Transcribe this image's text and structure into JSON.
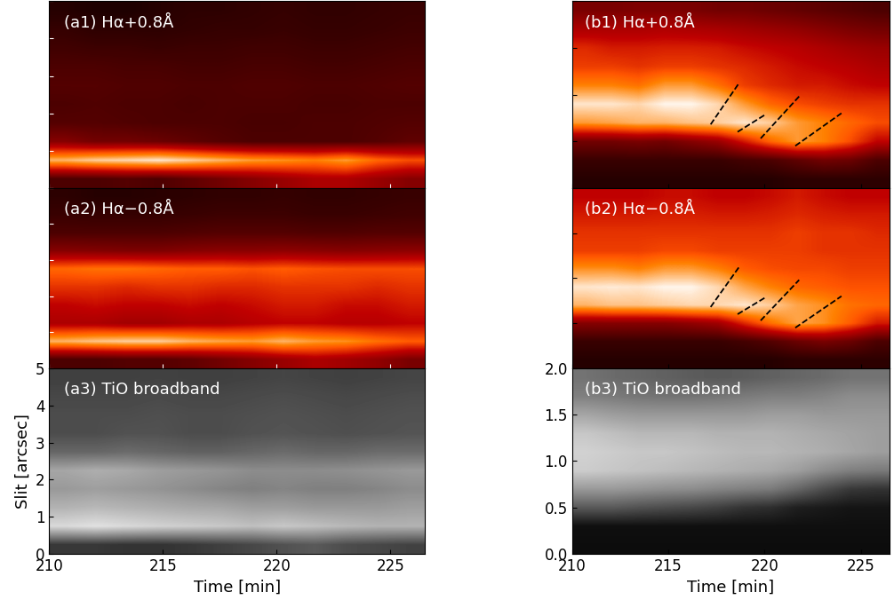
{
  "chart_data": [
    {
      "type": "heatmap",
      "title": "(a1) Hα+0.8Å",
      "color": "gist_heat",
      "xlim": [
        210,
        226.5
      ],
      "xticks": [
        210,
        215,
        220,
        225
      ],
      "ylim": [
        0,
        5
      ],
      "yticks": [
        0,
        1,
        2,
        3,
        4,
        5
      ],
      "tick_labels": false,
      "value_range": [
        0,
        1
      ],
      "cells": [
        [
          0.2,
          0.2,
          0.22,
          0.2,
          0.25,
          0.3,
          0.35,
          0.4,
          0.45,
          0.45,
          0.4,
          0.35
        ],
        [
          0.85,
          0.9,
          0.92,
          0.95,
          0.9,
          0.85,
          0.8,
          0.78,
          0.75,
          0.8,
          0.7,
          0.65
        ],
        [
          0.35,
          0.3,
          0.3,
          0.28,
          0.25,
          0.22,
          0.2,
          0.2,
          0.2,
          0.2,
          0.22,
          0.25
        ],
        [
          0.22,
          0.22,
          0.21,
          0.2,
          0.2,
          0.2,
          0.19,
          0.19,
          0.2,
          0.2,
          0.21,
          0.22
        ],
        [
          0.2,
          0.21,
          0.2,
          0.2,
          0.19,
          0.2,
          0.2,
          0.2,
          0.19,
          0.19,
          0.2,
          0.2
        ],
        [
          0.22,
          0.22,
          0.21,
          0.21,
          0.2,
          0.2,
          0.21,
          0.21,
          0.2,
          0.2,
          0.21,
          0.22
        ],
        [
          0.2,
          0.2,
          0.19,
          0.19,
          0.18,
          0.18,
          0.19,
          0.19,
          0.18,
          0.18,
          0.19,
          0.2
        ],
        [
          0.17,
          0.16,
          0.16,
          0.15,
          0.16,
          0.16,
          0.17,
          0.17,
          0.16,
          0.16,
          0.17,
          0.18
        ],
        [
          0.14,
          0.12,
          0.12,
          0.12,
          0.13,
          0.14,
          0.14,
          0.15,
          0.14,
          0.14,
          0.15,
          0.16
        ],
        [
          0.1,
          0.08,
          0.08,
          0.1,
          0.12,
          0.12,
          0.13,
          0.14,
          0.13,
          0.13,
          0.14,
          0.15
        ]
      ]
    },
    {
      "type": "heatmap",
      "title": "(a2) Hα−0.8Å",
      "color": "gist_heat",
      "xlim": [
        210,
        226.5
      ],
      "xticks": [
        210,
        215,
        220,
        225
      ],
      "ylim": [
        0,
        5
      ],
      "yticks": [
        0,
        1,
        2,
        3,
        4,
        5
      ],
      "tick_labels": false,
      "value_range": [
        0,
        1
      ],
      "cells": [
        [
          0.2,
          0.2,
          0.22,
          0.22,
          0.25,
          0.3,
          0.35,
          0.4,
          0.45,
          0.42,
          0.38,
          0.32
        ],
        [
          0.85,
          0.88,
          0.9,
          0.9,
          0.85,
          0.82,
          0.8,
          0.85,
          0.8,
          0.78,
          0.72,
          0.68
        ],
        [
          0.45,
          0.45,
          0.42,
          0.42,
          0.45,
          0.45,
          0.48,
          0.5,
          0.5,
          0.48,
          0.48,
          0.5
        ],
        [
          0.5,
          0.52,
          0.5,
          0.5,
          0.52,
          0.5,
          0.52,
          0.55,
          0.55,
          0.52,
          0.52,
          0.55
        ],
        [
          0.6,
          0.6,
          0.58,
          0.6,
          0.6,
          0.58,
          0.58,
          0.6,
          0.6,
          0.6,
          0.58,
          0.6
        ],
        [
          0.7,
          0.72,
          0.72,
          0.7,
          0.68,
          0.68,
          0.66,
          0.68,
          0.66,
          0.65,
          0.65,
          0.65
        ],
        [
          0.35,
          0.34,
          0.33,
          0.33,
          0.35,
          0.36,
          0.36,
          0.37,
          0.36,
          0.35,
          0.36,
          0.37
        ],
        [
          0.2,
          0.2,
          0.2,
          0.2,
          0.21,
          0.22,
          0.22,
          0.22,
          0.21,
          0.21,
          0.22,
          0.22
        ],
        [
          0.15,
          0.14,
          0.14,
          0.14,
          0.15,
          0.16,
          0.16,
          0.16,
          0.15,
          0.15,
          0.16,
          0.17
        ],
        [
          0.12,
          0.1,
          0.1,
          0.11,
          0.12,
          0.13,
          0.13,
          0.14,
          0.13,
          0.13,
          0.14,
          0.15
        ]
      ]
    },
    {
      "type": "heatmap",
      "title": "(a3) TiO broadband",
      "color": "gray",
      "xlim": [
        210,
        226.5
      ],
      "xticks": [
        210,
        215,
        220,
        225
      ],
      "ylim": [
        0,
        5
      ],
      "yticks": [
        0,
        1,
        2,
        3,
        4,
        5
      ],
      "x_label": "Time [min]",
      "y_label": "Slit [arcsec]",
      "value_range": [
        0,
        1
      ],
      "cells": [
        [
          0.22,
          0.22,
          0.2,
          0.2,
          0.22,
          0.25,
          0.28,
          0.32,
          0.35,
          0.3,
          0.28,
          0.26
        ],
        [
          0.85,
          0.88,
          0.85,
          0.82,
          0.8,
          0.78,
          0.75,
          0.78,
          0.75,
          0.72,
          0.7,
          0.7
        ],
        [
          0.7,
          0.72,
          0.7,
          0.68,
          0.66,
          0.65,
          0.62,
          0.62,
          0.6,
          0.6,
          0.6,
          0.62
        ],
        [
          0.6,
          0.62,
          0.6,
          0.58,
          0.55,
          0.52,
          0.5,
          0.52,
          0.5,
          0.5,
          0.52,
          0.55
        ],
        [
          0.65,
          0.68,
          0.66,
          0.62,
          0.6,
          0.58,
          0.55,
          0.55,
          0.55,
          0.56,
          0.58,
          0.6
        ],
        [
          0.4,
          0.4,
          0.42,
          0.4,
          0.38,
          0.38,
          0.4,
          0.42,
          0.4,
          0.4,
          0.42,
          0.42
        ],
        [
          0.3,
          0.3,
          0.32,
          0.32,
          0.3,
          0.3,
          0.32,
          0.33,
          0.32,
          0.31,
          0.32,
          0.33
        ],
        [
          0.3,
          0.3,
          0.3,
          0.31,
          0.3,
          0.3,
          0.31,
          0.32,
          0.31,
          0.3,
          0.31,
          0.32
        ],
        [
          0.28,
          0.28,
          0.28,
          0.29,
          0.28,
          0.28,
          0.29,
          0.3,
          0.29,
          0.28,
          0.29,
          0.3
        ],
        [
          0.25,
          0.25,
          0.25,
          0.26,
          0.25,
          0.25,
          0.26,
          0.27,
          0.26,
          0.25,
          0.26,
          0.27
        ]
      ]
    },
    {
      "type": "heatmap",
      "title": "(b1) Hα+0.8Å",
      "color": "gist_heat",
      "xlim": [
        210,
        226.5
      ],
      "xticks": [
        210,
        215,
        220,
        225
      ],
      "ylim": [
        0,
        2
      ],
      "yticks": [
        0,
        0.5,
        1,
        1.5,
        2
      ],
      "tick_labels": false,
      "value_range": [
        0,
        1
      ],
      "cells": [
        [
          0.1,
          0.1,
          0.1,
          0.1,
          0.1,
          0.1,
          0.1,
          0.1,
          0.12,
          0.12,
          0.12,
          0.12
        ],
        [
          0.15,
          0.15,
          0.15,
          0.15,
          0.15,
          0.15,
          0.18,
          0.2,
          0.25,
          0.3,
          0.28,
          0.2
        ],
        [
          0.3,
          0.3,
          0.32,
          0.3,
          0.35,
          0.4,
          0.55,
          0.7,
          0.8,
          0.75,
          0.65,
          0.5
        ],
        [
          0.8,
          0.82,
          0.85,
          0.85,
          0.88,
          0.9,
          0.95,
          0.9,
          0.8,
          0.75,
          0.7,
          0.65
        ],
        [
          0.95,
          0.95,
          0.92,
          0.98,
          0.98,
          0.92,
          0.8,
          0.7,
          0.65,
          0.62,
          0.6,
          0.6
        ],
        [
          0.75,
          0.75,
          0.72,
          0.8,
          0.8,
          0.72,
          0.62,
          0.58,
          0.55,
          0.55,
          0.52,
          0.5
        ],
        [
          0.62,
          0.62,
          0.6,
          0.62,
          0.62,
          0.6,
          0.58,
          0.55,
          0.52,
          0.5,
          0.48,
          0.45
        ],
        [
          0.58,
          0.55,
          0.55,
          0.56,
          0.56,
          0.55,
          0.52,
          0.5,
          0.48,
          0.45,
          0.42,
          0.4
        ],
        [
          0.45,
          0.45,
          0.45,
          0.46,
          0.45,
          0.44,
          0.42,
          0.4,
          0.38,
          0.35,
          0.32,
          0.3
        ],
        [
          0.32,
          0.32,
          0.33,
          0.33,
          0.32,
          0.3,
          0.3,
          0.28,
          0.26,
          0.24,
          0.22,
          0.2
        ]
      ],
      "dashes": [
        [
          [
            217.2,
            0.68
          ],
          [
            218.7,
            1.13
          ]
        ],
        [
          [
            218.6,
            0.6
          ],
          [
            220.0,
            0.78
          ]
        ],
        [
          [
            219.8,
            0.53
          ],
          [
            221.8,
            0.98
          ]
        ],
        [
          [
            221.6,
            0.45
          ],
          [
            224.0,
            0.8
          ]
        ]
      ]
    },
    {
      "type": "heatmap",
      "title": "(b2) Hα−0.8Å",
      "color": "gist_heat",
      "xlim": [
        210,
        226.5
      ],
      "xticks": [
        210,
        215,
        220,
        225
      ],
      "ylim": [
        0,
        2
      ],
      "yticks": [
        0,
        0.5,
        1,
        1.5,
        2
      ],
      "tick_labels": false,
      "value_range": [
        0,
        1
      ],
      "cells": [
        [
          0.1,
          0.1,
          0.1,
          0.1,
          0.1,
          0.1,
          0.1,
          0.1,
          0.12,
          0.12,
          0.12,
          0.12
        ],
        [
          0.15,
          0.15,
          0.15,
          0.15,
          0.15,
          0.15,
          0.18,
          0.22,
          0.28,
          0.32,
          0.28,
          0.2
        ],
        [
          0.35,
          0.35,
          0.35,
          0.35,
          0.38,
          0.42,
          0.58,
          0.72,
          0.82,
          0.78,
          0.68,
          0.55
        ],
        [
          0.85,
          0.88,
          0.88,
          0.9,
          0.92,
          0.92,
          0.95,
          0.9,
          0.82,
          0.78,
          0.72,
          0.7
        ],
        [
          0.95,
          0.96,
          0.95,
          0.98,
          0.98,
          0.92,
          0.82,
          0.75,
          0.7,
          0.68,
          0.66,
          0.66
        ],
        [
          0.78,
          0.78,
          0.75,
          0.8,
          0.8,
          0.75,
          0.68,
          0.65,
          0.64,
          0.64,
          0.62,
          0.62
        ],
        [
          0.62,
          0.62,
          0.62,
          0.64,
          0.64,
          0.62,
          0.62,
          0.62,
          0.62,
          0.6,
          0.6,
          0.6
        ],
        [
          0.6,
          0.6,
          0.6,
          0.6,
          0.6,
          0.6,
          0.6,
          0.6,
          0.62,
          0.6,
          0.6,
          0.58
        ],
        [
          0.55,
          0.55,
          0.55,
          0.56,
          0.56,
          0.55,
          0.55,
          0.56,
          0.58,
          0.56,
          0.55,
          0.55
        ],
        [
          0.5,
          0.5,
          0.5,
          0.52,
          0.52,
          0.5,
          0.5,
          0.52,
          0.55,
          0.52,
          0.5,
          0.5
        ]
      ],
      "dashes": [
        [
          [
            217.2,
            0.68
          ],
          [
            218.7,
            1.13
          ]
        ],
        [
          [
            218.6,
            0.6
          ],
          [
            220.0,
            0.78
          ]
        ],
        [
          [
            219.8,
            0.53
          ],
          [
            221.8,
            0.98
          ]
        ],
        [
          [
            221.6,
            0.45
          ],
          [
            224.0,
            0.8
          ]
        ]
      ]
    },
    {
      "type": "heatmap",
      "title": "(b3) TiO broadband",
      "color": "gray",
      "xlim": [
        210,
        226.5
      ],
      "xticks": [
        210,
        215,
        220,
        225
      ],
      "ylim": [
        0,
        2
      ],
      "yticks": [
        {
          "value": 0,
          "label": "0.0"
        },
        {
          "value": 0.5,
          "label": "0.5"
        },
        {
          "value": 1,
          "label": "1.0"
        },
        {
          "value": 1.5,
          "label": "1.5"
        },
        {
          "value": 2,
          "label": "2.0"
        }
      ],
      "x_label": "Time [min]",
      "value_range": [
        0,
        1
      ],
      "cells": [
        [
          0.05,
          0.05,
          0.05,
          0.05,
          0.05,
          0.05,
          0.05,
          0.05,
          0.05,
          0.05,
          0.05,
          0.05
        ],
        [
          0.06,
          0.06,
          0.06,
          0.06,
          0.06,
          0.06,
          0.06,
          0.06,
          0.06,
          0.06,
          0.06,
          0.06
        ],
        [
          0.35,
          0.35,
          0.32,
          0.3,
          0.28,
          0.25,
          0.2,
          0.18,
          0.12,
          0.1,
          0.08,
          0.08
        ],
        [
          0.6,
          0.6,
          0.58,
          0.56,
          0.55,
          0.52,
          0.5,
          0.48,
          0.4,
          0.3,
          0.22,
          0.2
        ],
        [
          0.8,
          0.78,
          0.76,
          0.74,
          0.72,
          0.7,
          0.68,
          0.66,
          0.62,
          0.55,
          0.5,
          0.48
        ],
        [
          0.82,
          0.8,
          0.78,
          0.78,
          0.76,
          0.74,
          0.72,
          0.72,
          0.7,
          0.68,
          0.65,
          0.62
        ],
        [
          0.78,
          0.75,
          0.72,
          0.72,
          0.72,
          0.7,
          0.7,
          0.7,
          0.68,
          0.66,
          0.64,
          0.62
        ],
        [
          0.65,
          0.62,
          0.6,
          0.6,
          0.6,
          0.6,
          0.6,
          0.62,
          0.62,
          0.6,
          0.6,
          0.6
        ],
        [
          0.5,
          0.48,
          0.46,
          0.45,
          0.45,
          0.46,
          0.48,
          0.5,
          0.5,
          0.52,
          0.55,
          0.55
        ],
        [
          0.45,
          0.42,
          0.4,
          0.38,
          0.36,
          0.35,
          0.36,
          0.38,
          0.4,
          0.42,
          0.45,
          0.45
        ]
      ]
    }
  ]
}
